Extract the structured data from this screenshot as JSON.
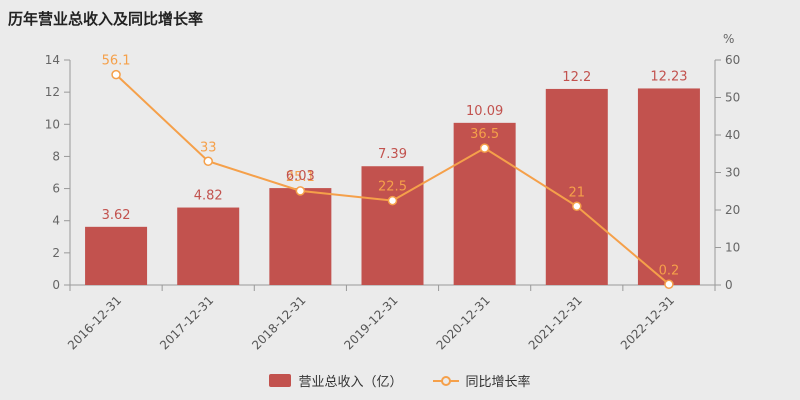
{
  "title": "历年营业总收入及同比增长率",
  "colors": {
    "background": "#ebebeb",
    "bar": "#c2524e",
    "line": "#f5a04a",
    "axis_line": "#999999",
    "tick_text": "#666666",
    "x_label_text": "#555555",
    "title_text": "#222222",
    "legend_text": "#333333",
    "point_fill": "#ffffff"
  },
  "legend": {
    "items": [
      {
        "label": "营业总收入（亿）"
      },
      {
        "label": "同比增长率"
      }
    ]
  },
  "chart_data": {
    "type": "bar+line",
    "title": "历年营业总收入及同比增长率",
    "categories": [
      "2016-12-31",
      "2017-12-31",
      "2018-12-31",
      "2019-12-31",
      "2020-12-31",
      "2021-12-31",
      "2022-12-31"
    ],
    "series": [
      {
        "name": "营业总收入（亿）",
        "type": "bar",
        "axis": "left",
        "color": "#c2524e",
        "values": [
          3.62,
          4.82,
          6.03,
          7.39,
          10.09,
          12.2,
          12.23
        ],
        "labels": [
          "3.62",
          "4.82",
          "6.03",
          "7.39",
          "10.09",
          "12.2",
          "12.23"
        ]
      },
      {
        "name": "同比增长率",
        "type": "line",
        "axis": "right",
        "color": "#f5a04a",
        "values": [
          56.1,
          33,
          25.1,
          22.5,
          36.5,
          21,
          0.2
        ],
        "labels": [
          "56.1",
          "33",
          "25.1",
          "22.5",
          "36.5",
          "21",
          "0.2"
        ]
      }
    ],
    "left_axis": {
      "min": 0,
      "max": 14,
      "ticks": [
        0,
        2,
        4,
        6,
        8,
        10,
        12,
        14
      ]
    },
    "right_axis": {
      "min": 0,
      "max": 60,
      "ticks": [
        0,
        10,
        20,
        30,
        40,
        50,
        60
      ],
      "unit": "%"
    },
    "legend_position": "bottom",
    "grid": false
  }
}
